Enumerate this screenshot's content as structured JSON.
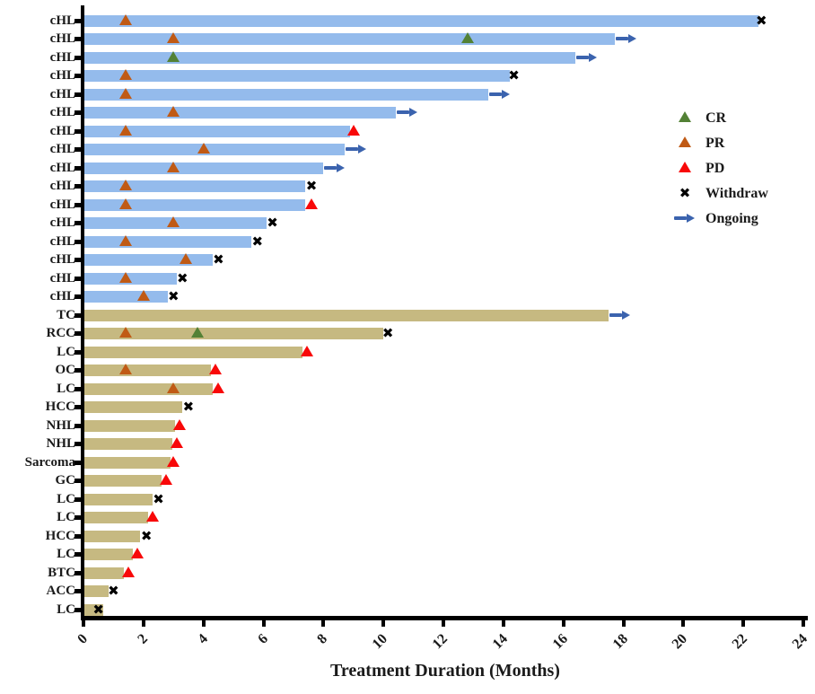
{
  "chart_data": {
    "type": "bar",
    "subtype": "swimmer-plot-horizontal",
    "xlabel": "Treatment Duration (Months)",
    "xlim": [
      0,
      24
    ],
    "x_ticks": [
      0,
      2,
      4,
      6,
      8,
      10,
      12,
      14,
      16,
      18,
      20,
      22,
      24
    ],
    "grid": "off",
    "legend_position": "upper-right-inside",
    "bar_colors": {
      "cHL": "#94bbec",
      "other": "#c6b981"
    },
    "marker_colors": {
      "CR": "#538135",
      "PR": "#c05a15",
      "PD": "#f80808",
      "Withdraw": "#000000",
      "Ongoing": "#3b63ae"
    },
    "legend": [
      {
        "key": "CR",
        "label": "CR"
      },
      {
        "key": "PR",
        "label": "PR"
      },
      {
        "key": "PD",
        "label": "PD"
      },
      {
        "key": "Withdraw",
        "label": "Withdraw"
      },
      {
        "key": "Ongoing",
        "label": "Ongoing"
      }
    ],
    "rows": [
      {
        "label": "cHL",
        "group": "cHL",
        "duration": 22.5,
        "ongoing": false,
        "markers": [
          {
            "type": "PR",
            "x": 1.4
          },
          {
            "type": "Withdraw",
            "x": 22.6
          }
        ]
      },
      {
        "label": "cHL",
        "group": "cHL",
        "duration": 17.7,
        "ongoing": true,
        "markers": [
          {
            "type": "PR",
            "x": 3.0
          },
          {
            "type": "CR",
            "x": 12.8
          }
        ]
      },
      {
        "label": "cHL",
        "group": "cHL",
        "duration": 16.4,
        "ongoing": true,
        "markers": [
          {
            "type": "CR",
            "x": 3.0
          }
        ]
      },
      {
        "label": "cHL",
        "group": "cHL",
        "duration": 14.2,
        "ongoing": false,
        "markers": [
          {
            "type": "PR",
            "x": 1.4
          },
          {
            "type": "Withdraw",
            "x": 14.35
          }
        ]
      },
      {
        "label": "cHL",
        "group": "cHL",
        "duration": 13.5,
        "ongoing": true,
        "markers": [
          {
            "type": "PR",
            "x": 1.4
          }
        ]
      },
      {
        "label": "cHL",
        "group": "cHL",
        "duration": 10.4,
        "ongoing": true,
        "markers": [
          {
            "type": "PR",
            "x": 3.0
          }
        ]
      },
      {
        "label": "cHL",
        "group": "cHL",
        "duration": 8.9,
        "ongoing": false,
        "markers": [
          {
            "type": "PR",
            "x": 1.4
          },
          {
            "type": "PD",
            "x": 9.0
          }
        ]
      },
      {
        "label": "cHL",
        "group": "cHL",
        "duration": 8.7,
        "ongoing": true,
        "markers": [
          {
            "type": "PR",
            "x": 4.0
          }
        ]
      },
      {
        "label": "cHL",
        "group": "cHL",
        "duration": 8.0,
        "ongoing": true,
        "markers": [
          {
            "type": "PR",
            "x": 3.0
          }
        ]
      },
      {
        "label": "cHL",
        "group": "cHL",
        "duration": 7.4,
        "ongoing": false,
        "markers": [
          {
            "type": "PR",
            "x": 1.4
          },
          {
            "type": "Withdraw",
            "x": 7.6
          }
        ]
      },
      {
        "label": "cHL",
        "group": "cHL",
        "duration": 7.4,
        "ongoing": false,
        "markers": [
          {
            "type": "PR",
            "x": 1.4
          },
          {
            "type": "PD",
            "x": 7.6
          }
        ]
      },
      {
        "label": "cHL",
        "group": "cHL",
        "duration": 6.1,
        "ongoing": false,
        "markers": [
          {
            "type": "PR",
            "x": 3.0
          },
          {
            "type": "Withdraw",
            "x": 6.3
          }
        ]
      },
      {
        "label": "cHL",
        "group": "cHL",
        "duration": 5.6,
        "ongoing": false,
        "markers": [
          {
            "type": "PR",
            "x": 1.4
          },
          {
            "type": "Withdraw",
            "x": 5.8
          }
        ]
      },
      {
        "label": "cHL",
        "group": "cHL",
        "duration": 4.3,
        "ongoing": false,
        "markers": [
          {
            "type": "PR",
            "x": 3.4
          },
          {
            "type": "Withdraw",
            "x": 4.5
          }
        ]
      },
      {
        "label": "cHL",
        "group": "cHL",
        "duration": 3.1,
        "ongoing": false,
        "markers": [
          {
            "type": "PR",
            "x": 1.4
          },
          {
            "type": "Withdraw",
            "x": 3.3
          }
        ]
      },
      {
        "label": "cHL",
        "group": "cHL",
        "duration": 2.8,
        "ongoing": false,
        "markers": [
          {
            "type": "PR",
            "x": 2.0
          },
          {
            "type": "Withdraw",
            "x": 3.0
          }
        ]
      },
      {
        "label": "TC",
        "group": "other",
        "duration": 17.5,
        "ongoing": true,
        "markers": []
      },
      {
        "label": "RCC",
        "group": "other",
        "duration": 10.0,
        "ongoing": false,
        "markers": [
          {
            "type": "PR",
            "x": 1.4
          },
          {
            "type": "CR",
            "x": 3.8
          },
          {
            "type": "Withdraw",
            "x": 10.15
          }
        ]
      },
      {
        "label": "LC",
        "group": "other",
        "duration": 7.3,
        "ongoing": false,
        "markers": [
          {
            "type": "PD",
            "x": 7.45
          }
        ]
      },
      {
        "label": "OC",
        "group": "other",
        "duration": 4.25,
        "ongoing": false,
        "markers": [
          {
            "type": "PR",
            "x": 1.4
          },
          {
            "type": "PD",
            "x": 4.4
          }
        ]
      },
      {
        "label": "LC",
        "group": "other",
        "duration": 4.3,
        "ongoing": false,
        "markers": [
          {
            "type": "PR",
            "x": 3.0
          },
          {
            "type": "PD",
            "x": 4.5
          }
        ]
      },
      {
        "label": "HCC",
        "group": "other",
        "duration": 3.3,
        "ongoing": false,
        "markers": [
          {
            "type": "Withdraw",
            "x": 3.5
          }
        ]
      },
      {
        "label": "NHL",
        "group": "other",
        "duration": 3.05,
        "ongoing": false,
        "markers": [
          {
            "type": "PD",
            "x": 3.2
          }
        ]
      },
      {
        "label": "NHL",
        "group": "other",
        "duration": 2.95,
        "ongoing": false,
        "markers": [
          {
            "type": "PD",
            "x": 3.1
          }
        ]
      },
      {
        "label": "Sarcoma",
        "group": "other",
        "duration": 2.9,
        "ongoing": false,
        "markers": [
          {
            "type": "PD",
            "x": 3.0
          }
        ]
      },
      {
        "label": "GC",
        "group": "other",
        "duration": 2.6,
        "ongoing": false,
        "markers": [
          {
            "type": "PD",
            "x": 2.75
          }
        ]
      },
      {
        "label": "LC",
        "group": "other",
        "duration": 2.3,
        "ongoing": false,
        "markers": [
          {
            "type": "Withdraw",
            "x": 2.5
          }
        ]
      },
      {
        "label": "LC",
        "group": "other",
        "duration": 2.15,
        "ongoing": false,
        "markers": [
          {
            "type": "PD",
            "x": 2.3
          }
        ]
      },
      {
        "label": "HCC",
        "group": "other",
        "duration": 1.9,
        "ongoing": false,
        "markers": [
          {
            "type": "Withdraw",
            "x": 2.1
          }
        ]
      },
      {
        "label": "LC",
        "group": "other",
        "duration": 1.65,
        "ongoing": false,
        "markers": [
          {
            "type": "PD",
            "x": 1.8
          }
        ]
      },
      {
        "label": "BTC",
        "group": "other",
        "duration": 1.35,
        "ongoing": false,
        "markers": [
          {
            "type": "PD",
            "x": 1.5
          }
        ]
      },
      {
        "label": "ACC",
        "group": "other",
        "duration": 0.85,
        "ongoing": false,
        "markers": [
          {
            "type": "Withdraw",
            "x": 1.0
          }
        ]
      },
      {
        "label": "LC",
        "group": "other",
        "duration": 0.65,
        "ongoing": false,
        "markers": [
          {
            "type": "Withdraw",
            "x": 0.5
          }
        ]
      }
    ]
  }
}
